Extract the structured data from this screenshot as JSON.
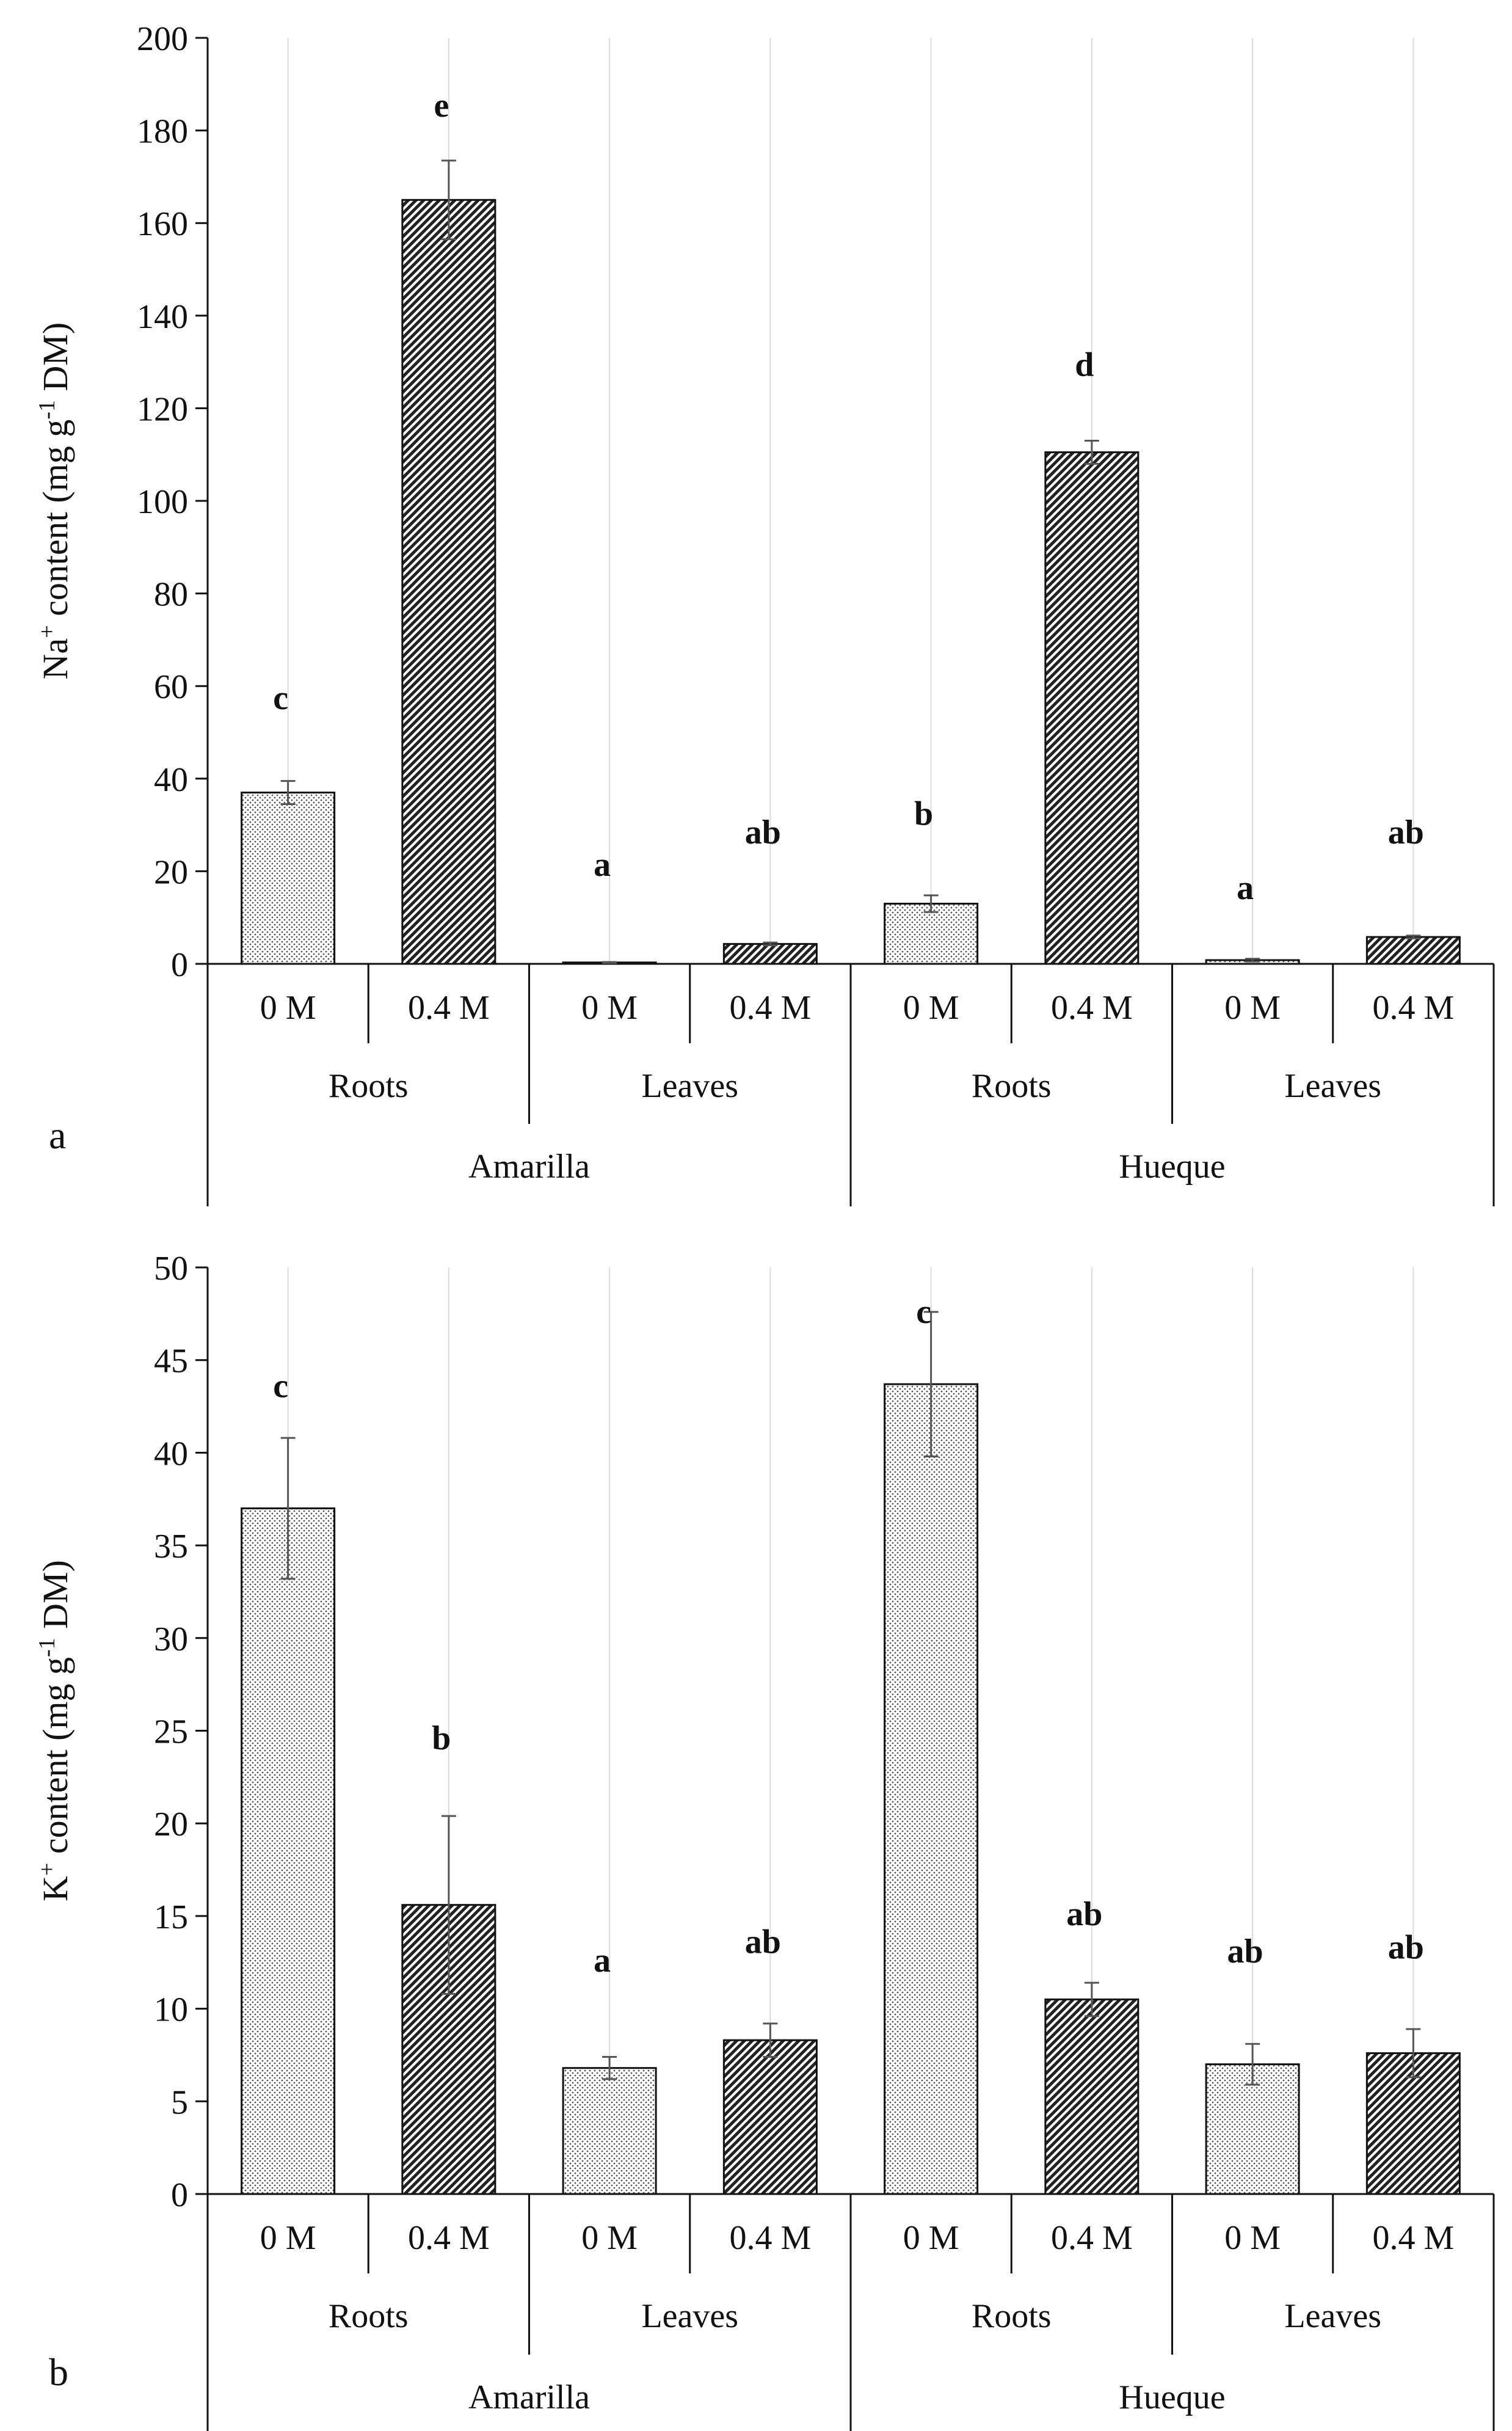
{
  "chart_data": [
    {
      "type": "bar",
      "panel_label": "a",
      "ylabel_main": "Na",
      "ylabel_sup": "+",
      "ylabel_rest": " content (mg g",
      "ylabel_sup2": "-1",
      "ylabel_end": " DM)",
      "ylim": [
        0,
        200
      ],
      "yticks": [
        0,
        20,
        40,
        60,
        80,
        100,
        120,
        140,
        160,
        180,
        200
      ],
      "treatments": [
        "0 M",
        "0.4 M",
        "0 M",
        "0.4 M",
        "0 M",
        "0.4 M",
        "0 M",
        "0.4 M"
      ],
      "tissues": [
        "Roots",
        "Leaves",
        "Roots",
        "Leaves"
      ],
      "cultivars": [
        "Amarilla",
        "Hueque"
      ],
      "values": [
        37,
        165,
        0.3,
        4.3,
        13,
        110.5,
        0.8,
        5.8
      ],
      "errors": [
        2.5,
        8.5,
        0.1,
        0.3,
        1.8,
        2.5,
        0.3,
        0.3
      ],
      "letters": [
        "c",
        "e",
        "a",
        "ab",
        "b",
        "d",
        "a",
        "ab"
      ],
      "letter_values": [
        55,
        183,
        19,
        26,
        30,
        127,
        14,
        26
      ]
    },
    {
      "type": "bar",
      "panel_label": "b",
      "ylabel_main": "K",
      "ylabel_sup": "+",
      "ylabel_rest": " content (mg g",
      "ylabel_sup2": "-1",
      "ylabel_end": " DM)",
      "ylim": [
        0,
        50
      ],
      "yticks": [
        0,
        5,
        10,
        15,
        20,
        25,
        30,
        35,
        40,
        45,
        50
      ],
      "treatments": [
        "0 M",
        "0.4 M",
        "0 M",
        "0.4 M",
        "0 M",
        "0.4 M",
        "0 M",
        "0.4 M"
      ],
      "tissues": [
        "Roots",
        "Leaves",
        "Roots",
        "Leaves"
      ],
      "cultivars": [
        "Amarilla",
        "Hueque"
      ],
      "values": [
        37,
        15.6,
        6.8,
        8.3,
        43.7,
        10.5,
        7,
        7.6
      ],
      "errors": [
        3.8,
        4.8,
        0.6,
        0.9,
        3.9,
        0.9,
        1.1,
        1.3
      ],
      "letters": [
        "c",
        "b",
        "a",
        "ab",
        "c",
        "ab",
        "ab",
        "ab"
      ],
      "letter_values": [
        43,
        24,
        12,
        13,
        47,
        14.5,
        12.5,
        12.7
      ]
    }
  ]
}
